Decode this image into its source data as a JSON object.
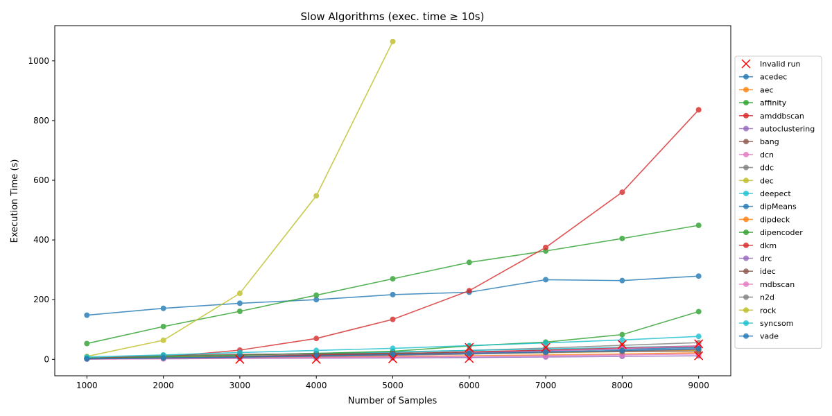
{
  "chart_data": {
    "type": "line",
    "title": "Slow Algorithms (exec. time ≥ 10s)",
    "xlabel": "Number of Samples",
    "ylabel": "Execution Time (s)",
    "xlim": [
      580,
      9420
    ],
    "ylim": [
      -55,
      1118
    ],
    "xticks": [
      1000,
      2000,
      3000,
      4000,
      5000,
      6000,
      7000,
      8000,
      9000
    ],
    "yticks": [
      0,
      200,
      400,
      600,
      800,
      1000
    ],
    "legend_position": "right",
    "invalid_label": "Invalid run",
    "invalid_color": "#ff0000",
    "invalid_points": [
      {
        "x": 3000,
        "y": 0
      },
      {
        "x": 4000,
        "y": 0
      },
      {
        "x": 5000,
        "y": 2
      },
      {
        "x": 6000,
        "y": 3
      },
      {
        "x": 6000,
        "y": 40
      },
      {
        "x": 7000,
        "y": 40
      },
      {
        "x": 8000,
        "y": 50
      },
      {
        "x": 9000,
        "y": 12
      },
      {
        "x": 9000,
        "y": 52
      }
    ],
    "x": [
      1000,
      2000,
      3000,
      4000,
      5000,
      6000,
      7000,
      8000,
      9000
    ],
    "series": [
      {
        "name": "acedec",
        "color": "#1f77b4",
        "values": [
          148,
          171,
          188,
          200,
          217,
          225,
          267,
          264,
          279
        ]
      },
      {
        "name": "aec",
        "color": "#ff7f0e",
        "values": [
          2,
          4,
          6,
          8,
          10,
          12,
          15,
          18,
          22
        ]
      },
      {
        "name": "affinity",
        "color": "#2ca02c",
        "values": [
          53,
          110,
          161,
          215,
          270,
          325,
          363,
          405,
          449
        ]
      },
      {
        "name": "amddbscan",
        "color": "#d62728",
        "values": [
          3,
          8,
          31,
          70,
          134,
          230,
          375,
          560,
          836
        ]
      },
      {
        "name": "autoclustering",
        "color": "#9467bd",
        "values": [
          1,
          2,
          3,
          4,
          5,
          6,
          8,
          10,
          12
        ]
      },
      {
        "name": "bang",
        "color": "#8c564b",
        "values": [
          2,
          5,
          9,
          14,
          19,
          24,
          30,
          36,
          43
        ]
      },
      {
        "name": "dcn",
        "color": "#e377c2",
        "values": [
          1,
          2,
          4,
          6,
          8,
          10,
          12,
          15,
          18
        ]
      },
      {
        "name": "ddc",
        "color": "#7f7f7f",
        "values": [
          2,
          5,
          10,
          16,
          23,
          30,
          38,
          47,
          56
        ]
      },
      {
        "name": "dec",
        "color": "#bcbd22",
        "values": [
          3,
          6,
          9,
          12,
          15,
          18,
          22,
          26,
          30
        ]
      },
      {
        "name": "deepect",
        "color": "#17becf",
        "values": [
          5,
          10,
          15,
          20,
          25,
          30,
          35,
          40,
          45
        ]
      },
      {
        "name": "dipMeans",
        "color": "#1f77b4",
        "values": [
          2,
          5,
          9,
          14,
          19,
          24,
          29,
          34,
          40
        ]
      },
      {
        "name": "dipdeck",
        "color": "#ff7f0e",
        "values": [
          3,
          6,
          9,
          12,
          16,
          20,
          24,
          28,
          33
        ]
      },
      {
        "name": "dipencoder",
        "color": "#2ca02c",
        "values": [
          4,
          9,
          14,
          20,
          27,
          45,
          58,
          83,
          160
        ]
      },
      {
        "name": "dkm",
        "color": "#d62728",
        "values": [
          2,
          5,
          9,
          14,
          19,
          25,
          31,
          38,
          45
        ]
      },
      {
        "name": "drc",
        "color": "#9467bd",
        "values": [
          2,
          4,
          7,
          10,
          14,
          18,
          23,
          28,
          34
        ]
      },
      {
        "name": "idec",
        "color": "#8c564b",
        "values": [
          3,
          13,
          17,
          18,
          20,
          22,
          24,
          26,
          28
        ]
      },
      {
        "name": "mdbscan",
        "color": "#e377c2",
        "values": [
          1,
          3,
          6,
          10,
          15,
          21,
          28,
          36,
          45
        ]
      },
      {
        "name": "n2d",
        "color": "#7f7f7f",
        "values": [
          2,
          4,
          7,
          10,
          14,
          18,
          23,
          28,
          34
        ]
      },
      {
        "name": "rock",
        "color": "#bcbd22",
        "values": [
          10,
          64,
          221,
          548,
          1065,
          null,
          null,
          null,
          null
        ]
      },
      {
        "name": "syncsom",
        "color": "#17becf",
        "values": [
          8,
          15,
          23,
          30,
          37,
          46,
          55,
          65,
          77
        ]
      },
      {
        "name": "vade",
        "color": "#1f77b4",
        "values": [
          2,
          5,
          8,
          12,
          16,
          20,
          25,
          30,
          36
        ]
      }
    ]
  }
}
